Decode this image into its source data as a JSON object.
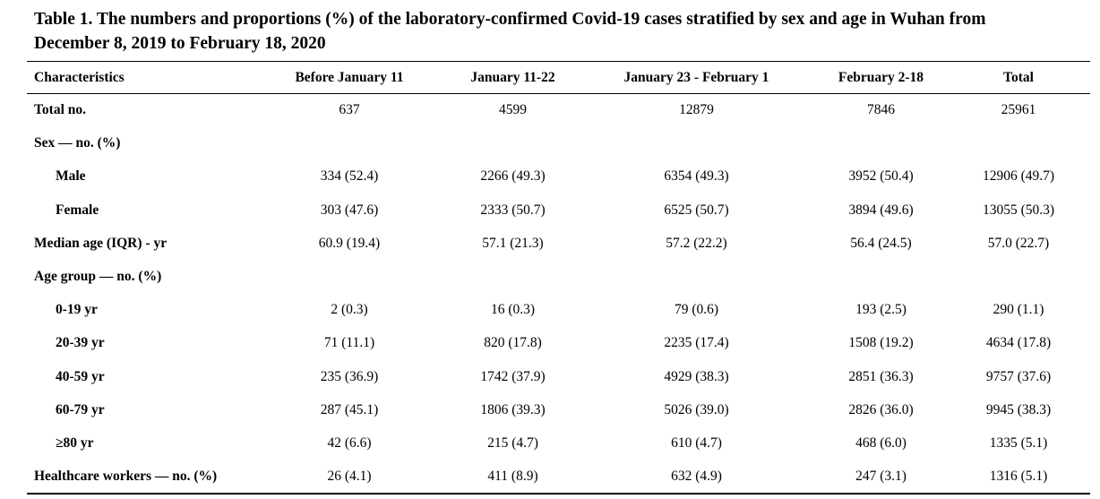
{
  "caption": {
    "line1": "Table 1. The numbers and proportions (%) of the laboratory-confirmed Covid-19 cases stratified by sex and age in Wuhan from",
    "line2": "December 8, 2019 to February 18, 2020"
  },
  "table": {
    "headers": [
      "Characteristics",
      "Before January 11",
      "January 11-22",
      "January 23 - February 1",
      "February 2-18",
      "Total"
    ],
    "rows": [
      {
        "label": "Total no.",
        "indent": false,
        "values": [
          "637",
          "4599",
          "12879",
          "7846",
          "25961"
        ]
      },
      {
        "label": "Sex — no. (%)",
        "indent": false,
        "values": [
          "",
          "",
          "",
          "",
          ""
        ]
      },
      {
        "label": "Male",
        "indent": true,
        "values": [
          "334 (52.4)",
          "2266 (49.3)",
          "6354 (49.3)",
          "3952 (50.4)",
          "12906 (49.7)"
        ]
      },
      {
        "label": "Female",
        "indent": true,
        "values": [
          "303 (47.6)",
          "2333 (50.7)",
          "6525 (50.7)",
          "3894 (49.6)",
          "13055 (50.3)"
        ]
      },
      {
        "label": "Median age (IQR) - yr",
        "indent": false,
        "values": [
          "60.9 (19.4)",
          "57.1 (21.3)",
          "57.2 (22.2)",
          "56.4 (24.5)",
          "57.0 (22.7)"
        ]
      },
      {
        "label": "Age group — no. (%)",
        "indent": false,
        "values": [
          "",
          "",
          "",
          "",
          ""
        ]
      },
      {
        "label": "0-19 yr",
        "indent": true,
        "values": [
          "2 (0.3)",
          "16 (0.3)",
          "79 (0.6)",
          "193 (2.5)",
          "290 (1.1)"
        ]
      },
      {
        "label": "20-39 yr",
        "indent": true,
        "values": [
          "71 (11.1)",
          "820 (17.8)",
          "2235 (17.4)",
          "1508 (19.2)",
          "4634 (17.8)"
        ]
      },
      {
        "label": "40-59 yr",
        "indent": true,
        "values": [
          "235 (36.9)",
          "1742 (37.9)",
          "4929 (38.3)",
          "2851 (36.3)",
          "9757 (37.6)"
        ]
      },
      {
        "label": "60-79 yr",
        "indent": true,
        "values": [
          "287 (45.1)",
          "1806 (39.3)",
          "5026 (39.0)",
          "2826 (36.0)",
          "9945 (38.3)"
        ]
      },
      {
        "label": "≥80 yr",
        "indent": true,
        "values": [
          "42 (6.6)",
          "215 (4.7)",
          "610 (4.7)",
          "468 (6.0)",
          "1335 (5.1)"
        ]
      },
      {
        "label": "Healthcare workers — no. (%)",
        "indent": false,
        "values": [
          "26 (4.1)",
          "411 (8.9)",
          "632 (4.9)",
          "247 (3.1)",
          "1316 (5.1)"
        ]
      }
    ]
  }
}
